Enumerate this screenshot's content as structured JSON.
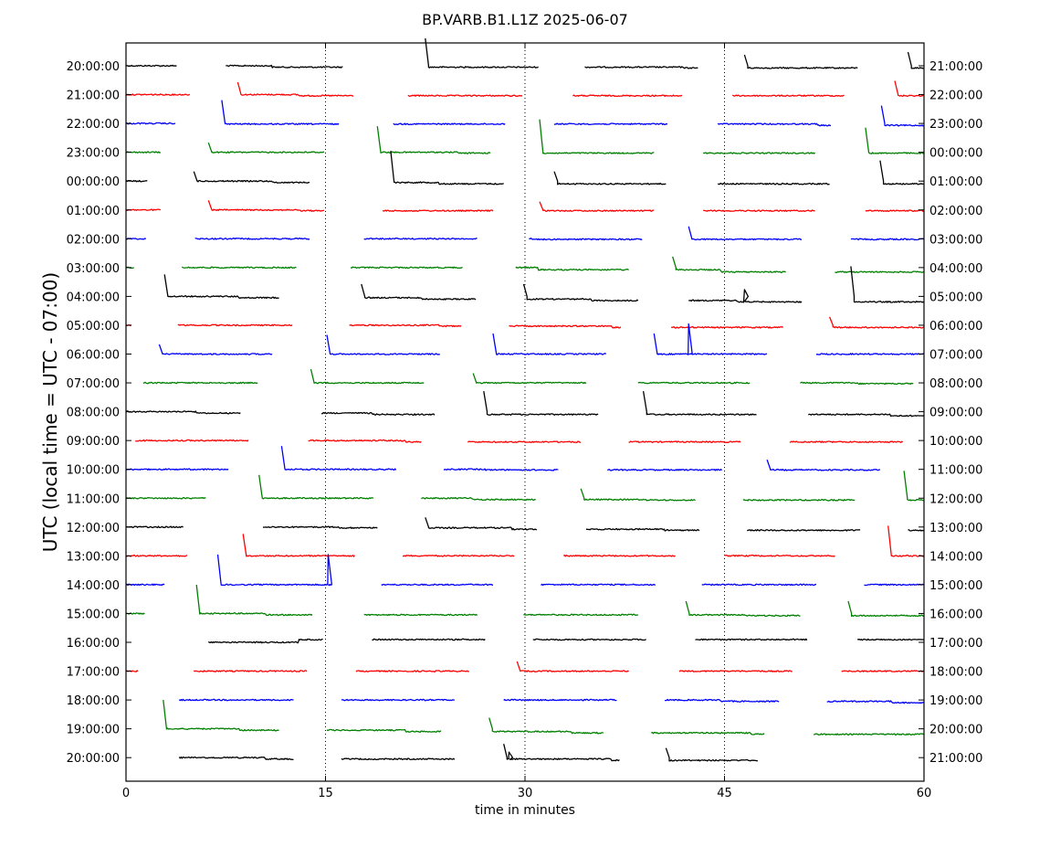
{
  "chart_data": {
    "type": "line",
    "title": "BP.VARB.B1.L1Z 2025-06-07",
    "xlabel": "time in minutes",
    "ylabel": "UTC (local time = UTC - 07:00)",
    "xlim": [
      0,
      60
    ],
    "x_ticks": [
      0,
      15,
      30,
      45,
      60
    ],
    "x_tick_labels": [
      "0",
      "15",
      "30",
      "45",
      "60"
    ],
    "vertical_gridlines_at": [
      15,
      30,
      45
    ],
    "grid_style": "dotted",
    "series_colors": [
      "#000000",
      "#ff0000",
      "#0000ff",
      "#008000"
    ],
    "left_labels": [
      "20:00:00",
      "21:00:00",
      "22:00:00",
      "23:00:00",
      "00:00:00",
      "01:00:00",
      "02:00:00",
      "03:00:00",
      "04:00:00",
      "05:00:00",
      "06:00:00",
      "07:00:00",
      "08:00:00",
      "09:00:00",
      "10:00:00",
      "11:00:00",
      "12:00:00",
      "13:00:00",
      "14:00:00",
      "15:00:00",
      "16:00:00",
      "17:00:00",
      "18:00:00",
      "19:00:00",
      "20:00:00"
    ],
    "right_labels": [
      "21:00:00",
      "22:00:00",
      "23:00:00",
      "00:00:00",
      "01:00:00",
      "02:00:00",
      "03:00:00",
      "04:00:00",
      "05:00:00",
      "06:00:00",
      "07:00:00",
      "08:00:00",
      "09:00:00",
      "10:00:00",
      "11:00:00",
      "12:00:00",
      "13:00:00",
      "14:00:00",
      "15:00:00",
      "16:00:00",
      "17:00:00",
      "18:00:00",
      "19:00:00",
      "20:00:00",
      "21:00:00"
    ],
    "traces": [
      {
        "segments": [
          [
            0,
            3.8
          ],
          [
            7.5,
            16.3
          ],
          [
            22.5,
            31
          ],
          [
            34.5,
            43
          ],
          [
            46.5,
            55
          ],
          [
            58.8,
            60
          ]
        ],
        "spikes": [
          [
            22.5,
            1.0
          ],
          [
            46.5,
            0.4
          ],
          [
            58.8,
            0.5
          ]
        ],
        "steps": [
          [
            11,
            0.05
          ],
          [
            42,
            0.03
          ]
        ]
      },
      {
        "segments": [
          [
            0,
            4.8
          ],
          [
            8.4,
            17.1
          ],
          [
            21.2,
            29.8
          ],
          [
            33.6,
            41.8
          ],
          [
            45.6,
            54
          ],
          [
            57.8,
            60
          ]
        ],
        "spikes": [
          [
            8.4,
            0.45
          ],
          [
            57.8,
            0.5
          ]
        ],
        "steps": [
          [
            13,
            0.04
          ]
        ]
      },
      {
        "segments": [
          [
            0,
            3.7
          ],
          [
            7.2,
            16
          ],
          [
            20.1,
            28.5
          ],
          [
            32.2,
            40.7
          ],
          [
            44.5,
            53
          ],
          [
            56.8,
            60
          ]
        ],
        "spikes": [
          [
            7.2,
            0.85
          ],
          [
            56.8,
            0.65
          ]
        ],
        "steps": [
          [
            5,
            0.02
          ],
          [
            52,
            0.05
          ]
        ]
      },
      {
        "segments": [
          [
            0,
            2.6
          ],
          [
            6.2,
            14.9
          ],
          [
            18.9,
            27.4
          ],
          [
            31.1,
            39.7
          ],
          [
            43.4,
            51.8
          ],
          [
            55.6,
            60
          ]
        ],
        "spikes": [
          [
            6.2,
            0.35
          ],
          [
            18.9,
            0.95
          ],
          [
            31.1,
            1.2
          ],
          [
            55.6,
            0.9
          ]
        ],
        "steps": [
          [
            25,
            0.03
          ]
        ]
      },
      {
        "segments": [
          [
            0,
            1.6
          ],
          [
            5.1,
            13.8
          ],
          [
            19.9,
            28.4
          ],
          [
            32.2,
            40.6
          ],
          [
            44.5,
            52.9
          ],
          [
            56.7,
            60
          ]
        ],
        "spikes": [
          [
            5.1,
            0.35
          ],
          [
            19.9,
            1.1
          ],
          [
            32.2,
            0.35
          ],
          [
            56.7,
            0.75
          ]
        ],
        "steps": [
          [
            11,
            0.05
          ],
          [
            23.5,
            0.05
          ]
        ]
      },
      {
        "segments": [
          [
            0,
            2.6
          ],
          [
            6.2,
            14.9
          ],
          [
            19.3,
            27.6
          ],
          [
            31.1,
            39.7
          ],
          [
            43.4,
            51.8
          ],
          [
            55.6,
            60
          ]
        ],
        "spikes": [
          [
            6.2,
            0.35
          ],
          [
            31.1,
            0.3
          ]
        ],
        "steps": [
          [
            13,
            0.03
          ]
        ]
      },
      {
        "segments": [
          [
            0,
            1.5
          ],
          [
            5.2,
            13.8
          ],
          [
            17.9,
            26.4
          ],
          [
            30.3,
            38.8
          ],
          [
            42.3,
            50.8
          ],
          [
            54.5,
            60
          ]
        ],
        "spikes": [
          [
            42.3,
            0.45
          ]
        ],
        "steps": [
          [
            30.5,
            0.02
          ]
        ]
      },
      {
        "segments": [
          [
            0,
            0.6
          ],
          [
            4.2,
            12.8
          ],
          [
            16.9,
            25.3
          ],
          [
            29.3,
            37.8
          ],
          [
            41.1,
            49.6
          ],
          [
            53.3,
            60
          ]
        ],
        "spikes": [
          [
            41.1,
            0.4
          ]
        ],
        "steps": [
          [
            31,
            0.08
          ],
          [
            44.7,
            0.08
          ]
        ]
      },
      {
        "segments": [
          [
            2.9,
            11.5
          ],
          [
            17.7,
            26.3
          ],
          [
            29.9,
            38.5
          ],
          [
            42.3,
            50.8
          ],
          [
            54.5,
            60
          ]
        ],
        "spikes": [
          [
            2.9,
            0.8
          ],
          [
            17.7,
            0.45
          ],
          [
            29.9,
            0.45
          ],
          [
            54.5,
            1.1
          ]
        ],
        "steps": [
          [
            8.5,
            0.05
          ],
          [
            22.3,
            0.05
          ],
          [
            35,
            0.05
          ],
          [
            46,
            0.05
          ]
        ],
        "blips": [
          [
            46.5,
            0.25
          ]
        ]
      },
      {
        "segments": [
          [
            0,
            0.4
          ],
          [
            3.9,
            12.5
          ],
          [
            16.8,
            25.2
          ],
          [
            28.8,
            37.2
          ],
          [
            41,
            49.4
          ],
          [
            52.9,
            60
          ]
        ],
        "spikes": [
          [
            52.9,
            0.3
          ]
        ],
        "steps": [
          [
            23.5,
            0.03
          ],
          [
            36.5,
            0.05
          ]
        ]
      },
      {
        "segments": [
          [
            2.5,
            11
          ],
          [
            15.1,
            23.6
          ],
          [
            27.6,
            36.1
          ],
          [
            39.7,
            48.2
          ],
          [
            51.9,
            60
          ]
        ],
        "spikes": [
          [
            2.5,
            0.35
          ],
          [
            15.1,
            0.7
          ],
          [
            27.6,
            0.75
          ],
          [
            39.7,
            0.75
          ]
        ],
        "blips": [
          [
            42.3,
            1.1
          ]
        ]
      },
      {
        "segments": [
          [
            1.3,
            9.9
          ],
          [
            13.9,
            22.4
          ],
          [
            26.1,
            34.6
          ],
          [
            38.5,
            46.9
          ],
          [
            50.7,
            59.2
          ]
        ],
        "spikes": [
          [
            13.9,
            0.5
          ],
          [
            26.1,
            0.35
          ]
        ],
        "steps": [
          [
            55,
            0.03
          ]
        ]
      },
      {
        "segments": [
          [
            0,
            8.6
          ],
          [
            14.7,
            23.2
          ],
          [
            26.9,
            35.5
          ],
          [
            38.9,
            47.4
          ],
          [
            51.3,
            60
          ]
        ],
        "spikes": [
          [
            26.9,
            0.75
          ],
          [
            38.9,
            0.75
          ]
        ],
        "steps": [
          [
            5.3,
            0.05
          ],
          [
            18.5,
            0.05
          ],
          [
            57.5,
            0.05
          ]
        ]
      },
      {
        "segments": [
          [
            0.7,
            9.2
          ],
          [
            13.7,
            22.2
          ],
          [
            25.7,
            34.2
          ],
          [
            37.8,
            46.2
          ],
          [
            49.9,
            58.4
          ]
        ],
        "steps": [
          [
            21,
            0.05
          ]
        ]
      },
      {
        "segments": [
          [
            0,
            7.7
          ],
          [
            11.7,
            20.3
          ],
          [
            23.9,
            32.5
          ],
          [
            36.2,
            44.8
          ],
          [
            48.2,
            56.7
          ]
        ],
        "spikes": [
          [
            11.7,
            0.85
          ],
          [
            48.2,
            0.35
          ]
        ],
        "steps": [
          [
            27,
            0.02
          ]
        ]
      },
      {
        "segments": [
          [
            0,
            6
          ],
          [
            10,
            18.6
          ],
          [
            22.2,
            30.8
          ],
          [
            34.2,
            42.8
          ],
          [
            46.4,
            54.8
          ],
          [
            58.5,
            60
          ]
        ],
        "spikes": [
          [
            10,
            0.85
          ],
          [
            34.2,
            0.35
          ],
          [
            58.5,
            1.0
          ]
        ],
        "steps": [
          [
            26,
            0.05
          ],
          [
            39,
            0.02
          ]
        ]
      },
      {
        "segments": [
          [
            0,
            4.3
          ],
          [
            10.3,
            18.9
          ],
          [
            22.5,
            30.9
          ],
          [
            34.6,
            43.1
          ],
          [
            46.7,
            55.2
          ],
          [
            58.8,
            60
          ]
        ],
        "spikes": [
          [
            22.5,
            0.35
          ]
        ],
        "steps": [
          [
            16,
            0.03
          ],
          [
            29,
            0.05
          ],
          [
            40.5,
            0.04
          ]
        ],
        "tails": [
          [
            55.2,
            0.1
          ]
        ]
      },
      {
        "segments": [
          [
            0,
            4.6
          ],
          [
            8.8,
            17.2
          ],
          [
            20.8,
            29.2
          ],
          [
            32.9,
            41.3
          ],
          [
            45,
            53.3
          ],
          [
            57.3,
            60
          ]
        ],
        "spikes": [
          [
            8.8,
            0.8
          ],
          [
            57.3,
            1.1
          ]
        ]
      },
      {
        "segments": [
          [
            0,
            2.9
          ],
          [
            6.9,
            15.4
          ],
          [
            19.2,
            27.6
          ],
          [
            31.2,
            39.8
          ],
          [
            43.3,
            51.9
          ],
          [
            55.5,
            60
          ]
        ],
        "spikes": [
          [
            6.9,
            1.1
          ]
        ],
        "blips": [
          [
            15.2,
            1.1
          ]
        ]
      },
      {
        "segments": [
          [
            0,
            1.4
          ],
          [
            5.3,
            14
          ],
          [
            17.9,
            26.4
          ],
          [
            29.9,
            38.5
          ],
          [
            42.1,
            50.7
          ],
          [
            54.3,
            60
          ]
        ],
        "spikes": [
          [
            5.3,
            1.05
          ],
          [
            42.1,
            0.45
          ],
          [
            54.3,
            0.45
          ]
        ],
        "steps": [
          [
            10.5,
            0.05
          ],
          [
            46.5,
            0.03
          ]
        ]
      },
      {
        "segments": [
          [
            6.2,
            14.8
          ],
          [
            18.5,
            27
          ],
          [
            30.6,
            39.1
          ],
          [
            42.8,
            51.2
          ],
          [
            55,
            60
          ]
        ],
        "steps": [
          [
            13,
            -0.1
          ]
        ]
      },
      {
        "segments": [
          [
            0,
            0.9
          ],
          [
            5.1,
            13.6
          ],
          [
            17.3,
            25.8
          ],
          [
            29.4,
            37.8
          ],
          [
            41.6,
            50.1
          ],
          [
            53.8,
            60
          ]
        ],
        "spikes": [
          [
            29.4,
            0.35
          ]
        ]
      },
      {
        "segments": [
          [
            4,
            12.6
          ],
          [
            16.2,
            24.7
          ],
          [
            28.4,
            36.9
          ],
          [
            40.5,
            49.1
          ],
          [
            52.7,
            60
          ]
        ],
        "steps": [
          [
            44.7,
            0.05
          ],
          [
            57.5,
            0.05
          ]
        ]
      },
      {
        "segments": [
          [
            2.8,
            11.5
          ],
          [
            15.1,
            23.7
          ],
          [
            27.3,
            35.9
          ],
          [
            39.5,
            48
          ],
          [
            51.7,
            60
          ]
        ],
        "spikes": [
          [
            2.8,
            1.05
          ],
          [
            27.3,
            0.4
          ]
        ],
        "steps": [
          [
            8.5,
            0.05
          ],
          [
            21,
            0.05
          ],
          [
            33.5,
            0.05
          ],
          [
            47,
            0.05
          ]
        ]
      },
      {
        "segments": [
          [
            4,
            12.6
          ],
          [
            16.2,
            24.7
          ],
          [
            28.4,
            37.1
          ],
          [
            40.6,
            47.5
          ]
        ],
        "spikes": [
          [
            28.4,
            0.5
          ],
          [
            40.6,
            0.35
          ]
        ],
        "steps": [
          [
            10.5,
            0.05
          ],
          [
            36.5,
            0.05
          ]
        ],
        "blips": [
          [
            28.8,
            0.2
          ]
        ]
      }
    ]
  }
}
